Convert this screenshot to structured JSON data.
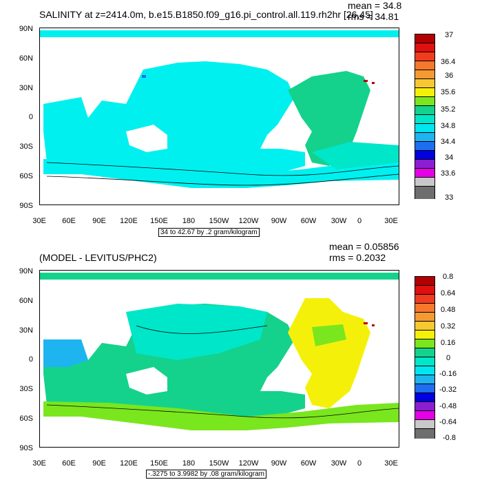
{
  "panel1": {
    "title": "SALINITY at z=2414.0m, b.e15.B1850.f09_g16.pi_control.all.119.rh2hr [26,45]",
    "mean": "mean = 34.8",
    "rms": "rms = 34.81",
    "range_note": "34 to 42.67 by .2 gram/kilogram",
    "colorbar_labels": [
      "37",
      "36.4",
      "36",
      "35.6",
      "35.2",
      "34.8",
      "34.4",
      "34",
      "33.6",
      "33"
    ],
    "colorbar_colors": [
      "#b30000",
      "#e01010",
      "#f03c1e",
      "#f5782d",
      "#f59a33",
      "#f8c832",
      "#f5f00a",
      "#7ae61e",
      "#14d28c",
      "#00e6c8",
      "#00e6f0",
      "#1eb4f0",
      "#1e6ef0",
      "#0000e1",
      "#8c1ed2",
      "#e600e6",
      "#c8c8c8",
      "#6e6e6e"
    ],
    "dominant_ocean_color": "#00f0f0"
  },
  "panel2": {
    "title": "(MODEL - LEVITUS/PHC2)",
    "mean": "mean = 0.05856",
    "rms": "rms = 0.2032",
    "range_note": "-.3275 to 3.9982 by .08 gram/kilogram",
    "colorbar_labels": [
      "0.8",
      "0.64",
      "0.48",
      "0.32",
      "0.16",
      "0",
      "-0.16",
      "-0.32",
      "-0.48",
      "-0.64",
      "-0.8"
    ],
    "colorbar_labels_mid": [
      "0.64",
      "0.48",
      "0.32",
      "0.16",
      "0",
      "-0.16",
      "-0.32",
      "-0.48",
      "-0.64"
    ],
    "colorbar_colors": [
      "#b30000",
      "#e01010",
      "#f03c1e",
      "#f5782d",
      "#f59a33",
      "#f8c832",
      "#f5f00a",
      "#7ae61e",
      "#14d28c",
      "#00e6c8",
      "#00e6f0",
      "#1eb4f0",
      "#1e6ef0",
      "#0000e1",
      "#8c1ed2",
      "#e600e6",
      "#c8c8c8",
      "#6e6e6e"
    ]
  },
  "axes": {
    "lat_labels": [
      "90N",
      "60N",
      "30N",
      "0",
      "30S",
      "60S",
      "90S"
    ],
    "lon_labels": [
      "30E",
      "60E",
      "90E",
      "120E",
      "150E",
      "180",
      "150W",
      "120W",
      "90W",
      "60W",
      "30W",
      "0",
      "30E"
    ]
  }
}
